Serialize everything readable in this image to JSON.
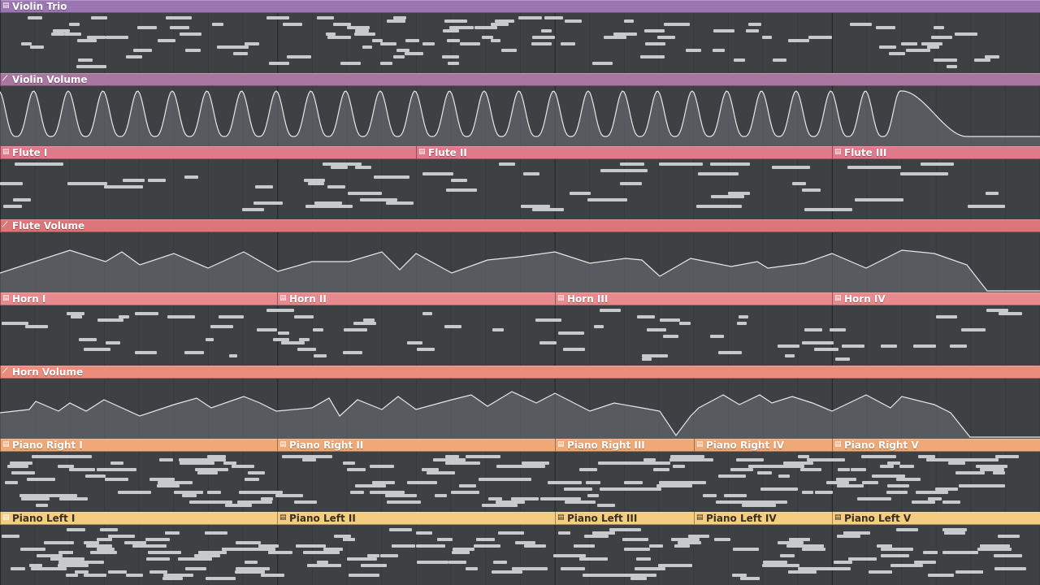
{
  "tracks": [
    {
      "type": "pattern",
      "color": "#9b76b3",
      "clips": [
        {
          "label": "Violin Trio"
        }
      ]
    },
    {
      "type": "automation",
      "color": "#a8769f",
      "clips": [
        {
          "label": "Violin Volume"
        }
      ]
    },
    {
      "type": "pattern",
      "color": "#e0798a",
      "clips": [
        {
          "label": "Flute I"
        },
        {
          "label": "Flute II"
        },
        {
          "label": "Flute III"
        }
      ]
    },
    {
      "type": "automation",
      "color": "#dd7478",
      "clips": [
        {
          "label": "Flute Volume"
        }
      ]
    },
    {
      "type": "pattern",
      "color": "#e8898d",
      "clips": [
        {
          "label": "Horn I"
        },
        {
          "label": "Horn II"
        },
        {
          "label": "Horn III"
        },
        {
          "label": "Horn IV"
        }
      ]
    },
    {
      "type": "automation",
      "color": "#ec8c7c",
      "clips": [
        {
          "label": "Horn Volume"
        }
      ]
    },
    {
      "type": "pattern",
      "color": "#f0a976",
      "clips": [
        {
          "label": "Piano Right I"
        },
        {
          "label": "Piano Right II"
        },
        {
          "label": "Piano Right III"
        },
        {
          "label": "Piano Right IV"
        },
        {
          "label": "Piano Right V"
        }
      ]
    },
    {
      "type": "pattern",
      "color": "#f3cd80",
      "clips": [
        {
          "label": "Piano Left I"
        },
        {
          "label": "Piano Left II"
        },
        {
          "label": "Piano Left III"
        },
        {
          "label": "Piano Left IV"
        },
        {
          "label": "Piano Left V"
        }
      ]
    }
  ],
  "icons": {
    "pattern": "pattern-icon",
    "automation": "automation-icon"
  }
}
